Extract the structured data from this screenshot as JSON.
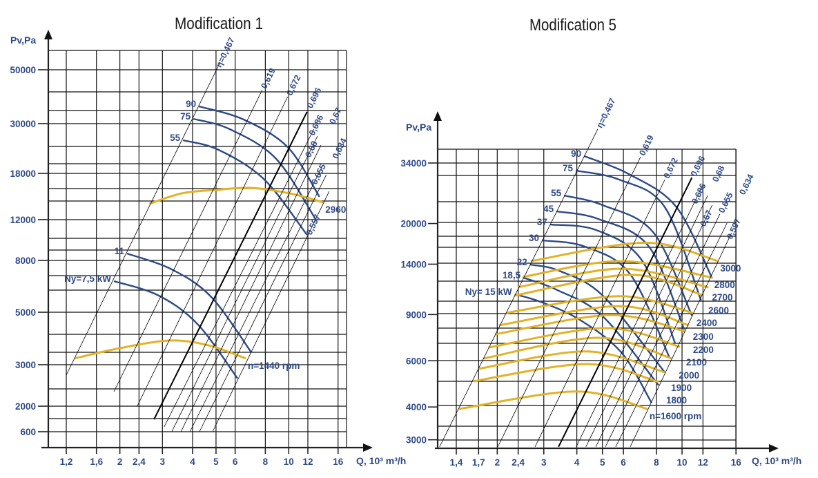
{
  "chart_data": [
    {
      "type": "line",
      "title": "Modification 1",
      "xlabel": "Q, 10³ m³/h",
      "ylabel": "Pv,Pa",
      "x_scale": "log",
      "grid": true,
      "x_ticks": [
        {
          "label": "1,2",
          "value": 1.2
        },
        {
          "label": "1,6",
          "value": 1.6
        },
        {
          "label": "2",
          "value": 2
        },
        {
          "label": "2,4",
          "value": 2.4
        },
        {
          "label": "3",
          "value": 3
        },
        {
          "label": "4",
          "value": 4
        },
        {
          "label": "5",
          "value": 5
        },
        {
          "label": "6",
          "value": 6
        },
        {
          "label": "8",
          "value": 8
        },
        {
          "label": "10",
          "value": 10
        },
        {
          "label": "12",
          "value": 12
        },
        {
          "label": "16",
          "value": 16
        }
      ],
      "y_ticks": [
        {
          "label": "50000",
          "value": 50000
        },
        {
          "label": "30000",
          "value": 30000
        },
        {
          "label": "18000",
          "value": 18000
        },
        {
          "label": "12000",
          "value": 12000
        },
        {
          "label": "8000",
          "value": 8000
        },
        {
          "label": "5000",
          "value": 5000
        },
        {
          "label": "3000",
          "value": 3000
        },
        {
          "label": "2000",
          "value": 2000
        },
        {
          "label": "600",
          "value": 600
        }
      ],
      "speed_curves": [
        {
          "label": "2960",
          "points": [
            [
              2.65,
              14060
            ],
            [
              3.6,
              15400
            ],
            [
              4.97,
              15850
            ],
            [
              6.98,
              16120
            ],
            [
              10.1,
              15400
            ],
            [
              13.9,
              14240
            ]
          ]
        },
        {
          "label": "n=1440 rpm",
          "points": [
            [
              1.3,
              3240
            ],
            [
              1.95,
              3610
            ],
            [
              3.2,
              3920
            ],
            [
              4.65,
              3740
            ],
            [
              6.64,
              3240
            ]
          ]
        }
      ],
      "power_curves": [
        {
          "label": "90",
          "points": [
            [
              4.25,
              36400
            ],
            [
              6.5,
              31540
            ],
            [
              9.9,
              24330
            ],
            [
              13.4,
              14960
            ]
          ]
        },
        {
          "label": "75",
          "points": [
            [
              4.03,
              31790
            ],
            [
              5.7,
              28670
            ],
            [
              8.87,
              21500
            ],
            [
              12.9,
              12090
            ]
          ]
        },
        {
          "label": "55",
          "points": [
            [
              3.65,
              26000
            ],
            [
              5.13,
              23670
            ],
            [
              7.93,
              17190
            ],
            [
              11.9,
              10510
            ]
          ]
        },
        {
          "label": "11",
          "points": [
            [
              2.14,
              8680
            ],
            [
              3.28,
              7480
            ],
            [
              4.78,
              5880
            ],
            [
              7.0,
              3470
            ]
          ]
        },
        {
          "label": "Ny=7,5 kW",
          "points": [
            [
              1.89,
              6800
            ],
            [
              2.9,
              5960
            ],
            [
              4.21,
              4530
            ],
            [
              6.14,
              2670
            ]
          ]
        }
      ],
      "efficiency_lines": [
        {
          "label": "η=0,467",
          "points": [
            [
              1.2,
              2750
            ],
            [
              5.17,
              52300
            ]
          ]
        },
        {
          "label": "0,619",
          "points": [
            [
              1.89,
              2350
            ],
            [
              7.77,
              42560
            ]
          ]
        },
        {
          "label": "0,672",
          "points": [
            [
              2.36,
              2000
            ],
            [
              9.9,
              40000
            ]
          ]
        },
        {
          "label": "0,696",
          "points": [
            [
              2.77,
              1280
            ],
            [
              11.9,
              34360
            ]
          ],
          "highlighted": true
        },
        {
          "label": "0,686",
          "points": [
            [
              3.05,
              865
            ],
            [
              12.7,
              28670
            ]
          ]
        },
        {
          "label": "0,68",
          "points": [
            [
              3.28,
              600
            ],
            [
              13.15,
              27000
            ]
          ]
        },
        {
          "label": "0,67",
          "points": [
            [
              3.58,
              600
            ],
            [
              13.6,
              24830
            ]
          ]
        },
        {
          "label": "0,655",
          "points": [
            [
              3.9,
              600
            ],
            [
              13.8,
              19830
            ]
          ]
        },
        {
          "label": "0,634",
          "points": [
            [
              4.27,
              600
            ],
            [
              14.3,
              17820
            ]
          ]
        },
        {
          "label": "0,597",
          "points": [
            [
              4.84,
              600
            ],
            [
              14.7,
              15670
            ]
          ]
        }
      ],
      "colors": {
        "speed": "#e2b227",
        "power": "#2c4a86",
        "efficiency": "#000000",
        "text": "#2e4a87"
      }
    },
    {
      "type": "line",
      "title": "Modification 5",
      "xlabel": "Q, 10³ m³/h",
      "ylabel": "Pv,Pa",
      "x_scale": "log",
      "y_scale": "log",
      "grid": true,
      "x_ticks": [
        {
          "label": "1,4",
          "value": 1.4
        },
        {
          "label": "1,7",
          "value": 1.7
        },
        {
          "label": "2",
          "value": 2
        },
        {
          "label": "2,4",
          "value": 2.4
        },
        {
          "label": "3",
          "value": 3
        },
        {
          "label": "4",
          "value": 4
        },
        {
          "label": "5",
          "value": 5
        },
        {
          "label": "6",
          "value": 6
        },
        {
          "label": "8",
          "value": 8
        },
        {
          "label": "10",
          "value": 10
        },
        {
          "label": "12",
          "value": 12
        },
        {
          "label": "16",
          "value": 16
        }
      ],
      "y_ticks": [
        {
          "label": "34000",
          "value": 34000
        },
        {
          "label": "20000",
          "value": 20000
        },
        {
          "label": "14000",
          "value": 14000
        },
        {
          "label": "9000",
          "value": 9000
        },
        {
          "label": "6000",
          "value": 6000
        },
        {
          "label": "4000",
          "value": 4000
        },
        {
          "label": "3000",
          "value": 3000
        }
      ],
      "speed_curves": [
        {
          "label": "3000",
          "points": [
            [
              2.68,
              14380
            ],
            [
              7.27,
              16900
            ],
            [
              13.7,
              14380
            ]
          ]
        },
        {
          "label": "2800",
          "points": [
            [
              2.49,
              12510
            ],
            [
              5.89,
              14380
            ],
            [
              13.0,
              12440
            ]
          ]
        },
        {
          "label": "2700",
          "points": [
            [
              2.39,
              11420
            ],
            [
              5.89,
              13450
            ],
            [
              12.6,
              11420
            ]
          ]
        },
        {
          "label": "2600",
          "points": [
            [
              2.32,
              10630
            ],
            [
              6.37,
              12750
            ],
            [
              11.9,
              10690
            ]
          ]
        },
        {
          "label": "2400",
          "points": [
            [
              2.16,
              9130
            ],
            [
              5.78,
              10570
            ],
            [
              11.0,
              9130
            ]
          ]
        },
        {
          "label": "2300",
          "points": [
            [
              2.03,
              8190
            ],
            [
              5.78,
              9690
            ],
            [
              10.6,
              8190
            ]
          ]
        },
        {
          "label": "2200",
          "points": [
            [
              1.96,
              7570
            ],
            [
              5.39,
              8960
            ],
            [
              10.3,
              7750
            ]
          ]
        },
        {
          "label": "2100",
          "points": [
            [
              1.85,
              6740
            ],
            [
              5.13,
              7990
            ],
            [
              9.82,
              6780
            ]
          ]
        },
        {
          "label": "2000",
          "points": [
            [
              1.77,
              6120
            ],
            [
              4.8,
              7340
            ],
            [
              9.14,
              6120
            ]
          ]
        },
        {
          "label": "1900",
          "points": [
            [
              1.7,
              5590
            ],
            [
              4.36,
              6510
            ],
            [
              8.61,
              5420
            ]
          ]
        },
        {
          "label": "1800",
          "points": [
            [
              1.62,
              5010
            ],
            [
              4.36,
              5830
            ],
            [
              8.15,
              4980
            ]
          ]
        },
        {
          "label": "n=1600 rpm",
          "points": [
            [
              1.43,
              3930
            ],
            [
              3.98,
              4580
            ],
            [
              7.4,
              3930
            ]
          ]
        }
      ],
      "power_curves": [
        {
          "label": "90",
          "points": [
            [
              4.26,
              36150
            ],
            [
              6.37,
              30660
            ],
            [
              9.53,
              23080
            ],
            [
              13.0,
              12370
            ]
          ]
        },
        {
          "label": "75",
          "points": [
            [
              3.96,
              31820
            ],
            [
              5.78,
              29400
            ],
            [
              8.61,
              23080
            ],
            [
              11.8,
              10180
            ]
          ]
        },
        {
          "label": "55",
          "points": [
            [
              3.58,
              25570
            ],
            [
              5.01,
              23490
            ],
            [
              7.81,
              18440
            ],
            [
              10.9,
              8910
            ]
          ]
        },
        {
          "label": "45",
          "points": [
            [
              3.35,
              22250
            ],
            [
              4.83,
              20800
            ],
            [
              7.49,
              16340
            ],
            [
              10.2,
              7890
            ]
          ]
        },
        {
          "label": "37",
          "points": [
            [
              3.17,
              19820
            ],
            [
              4.72,
              18900
            ],
            [
              7.05,
              14480
            ],
            [
              9.42,
              6990
            ]
          ]
        },
        {
          "label": "30",
          "points": [
            [
              2.95,
              17250
            ],
            [
              4.28,
              16340
            ],
            [
              6.37,
              12810
            ],
            [
              8.97,
              6160
            ]
          ]
        },
        {
          "label": "22",
          "points": [
            [
              2.66,
              13950
            ],
            [
              3.43,
              13210
            ],
            [
              5.01,
              10630
            ],
            [
              8.61,
              5420
            ]
          ]
        },
        {
          "label": "18,5",
          "points": [
            [
              2.51,
              12440
            ],
            [
              3.37,
              11160
            ],
            [
              5.01,
              8860
            ],
            [
              8.15,
              4840
            ]
          ]
        },
        {
          "label": "Ny= 15 kW",
          "points": [
            [
              2.33,
              10750
            ],
            [
              2.92,
              10060
            ],
            [
              4.1,
              8600
            ],
            [
              5.89,
              6460
            ],
            [
              7.67,
              4150
            ]
          ]
        }
      ],
      "efficiency_lines": [
        {
          "label": "η=0,467",
          "points": [
            [
              1.21,
              2820
            ],
            [
              4.8,
              45760
            ]
          ]
        },
        {
          "label": "0,619",
          "points": [
            [
              2.01,
              2820
            ],
            [
              6.97,
              35900
            ]
          ]
        },
        {
          "label": "0,672",
          "points": [
            [
              2.78,
              2820
            ],
            [
              8.61,
              29400
            ]
          ]
        },
        {
          "label": "0,696",
          "points": [
            [
              3.41,
              2820
            ],
            [
              10.9,
              29930
            ]
          ],
          "highlighted": true
        },
        {
          "label": "0,686",
          "points": [
            [
              3.98,
              2820
            ],
            [
              11.97,
              28010
            ]
          ]
        },
        {
          "label": "0,68",
          "points": [
            [
              4.33,
              2820
            ],
            [
              12.5,
              25570
            ]
          ]
        },
        {
          "label": "0,67",
          "points": [
            [
              4.72,
              2820
            ],
            [
              13.0,
              23490
            ]
          ]
        },
        {
          "label": "0,655",
          "points": [
            [
              5.13,
              2820
            ],
            [
              13.9,
              21720
            ]
          ]
        },
        {
          "label": "0,634",
          "points": [
            [
              5.61,
              2820
            ],
            [
              14.8,
              20070
            ]
          ]
        },
        {
          "label": "0,597",
          "points": [
            [
              6.37,
              2820
            ],
            [
              15.4,
              18440
            ]
          ]
        }
      ],
      "colors": {
        "speed": "#e2b227",
        "power": "#2c4a86",
        "efficiency": "#000000",
        "text": "#2e4a87"
      }
    }
  ]
}
